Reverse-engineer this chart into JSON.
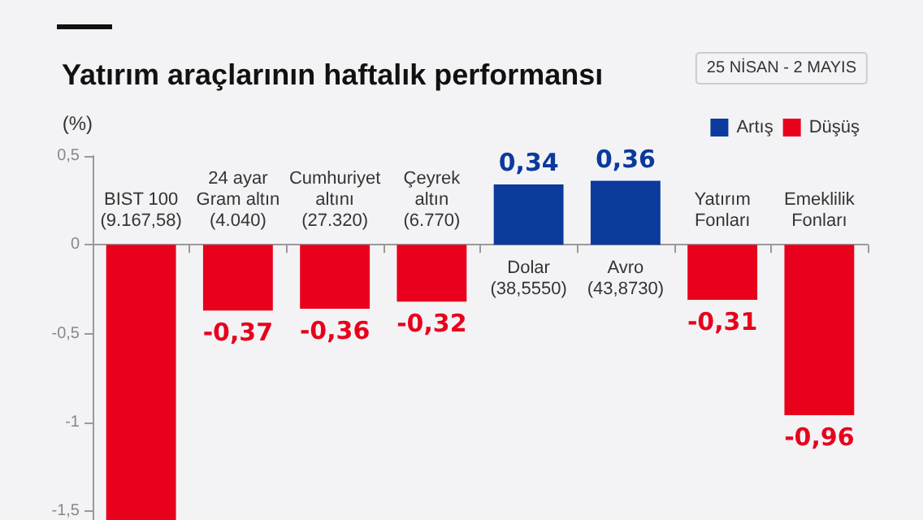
{
  "chart_data": {
    "type": "bar",
    "title": "Yatırım araçlarının haftalık performansı",
    "subtitle": "25 NİSAN - 2 MAYIS",
    "ylabel": "(%)",
    "categories": [
      "BIST 100\n(9.167,58)",
      "24 ayar\nGram altın\n(4.040)",
      "Cumhuriyet\naltını\n(27.320)",
      "Çeyrek\naltın\n(6.770)",
      "Dolar\n(38,5550)",
      "Avro\n(43,8730)",
      "Yatırım\nFonları",
      "Emeklilik\nFonları"
    ],
    "series": [
      {
        "name": "Artış",
        "color": "#0b3a9c",
        "values": [
          null,
          null,
          null,
          null,
          0.34,
          0.36,
          null,
          null
        ],
        "value_labels": [
          null,
          null,
          null,
          null,
          "0,34",
          "0,36",
          null,
          null
        ]
      },
      {
        "name": "Düşüş",
        "color": "#e8001c",
        "values": [
          -1.55,
          -0.37,
          -0.36,
          -0.32,
          null,
          null,
          -0.31,
          -0.96
        ],
        "value_labels": [
          null,
          "-0,37",
          "-0,36",
          "-0,32",
          null,
          null,
          "-0,31",
          "-0,96"
        ]
      }
    ],
    "ylim": [
      -1.55,
      0.5
    ],
    "yticks": [
      {
        "value": 0.5,
        "label": "0,5"
      },
      0,
      {
        "value": -0.5,
        "label": "-0,5"
      },
      -1,
      {
        "value": -1.5,
        "label": "-1,5"
      }
    ],
    "grid": false,
    "legend": "top right"
  }
}
